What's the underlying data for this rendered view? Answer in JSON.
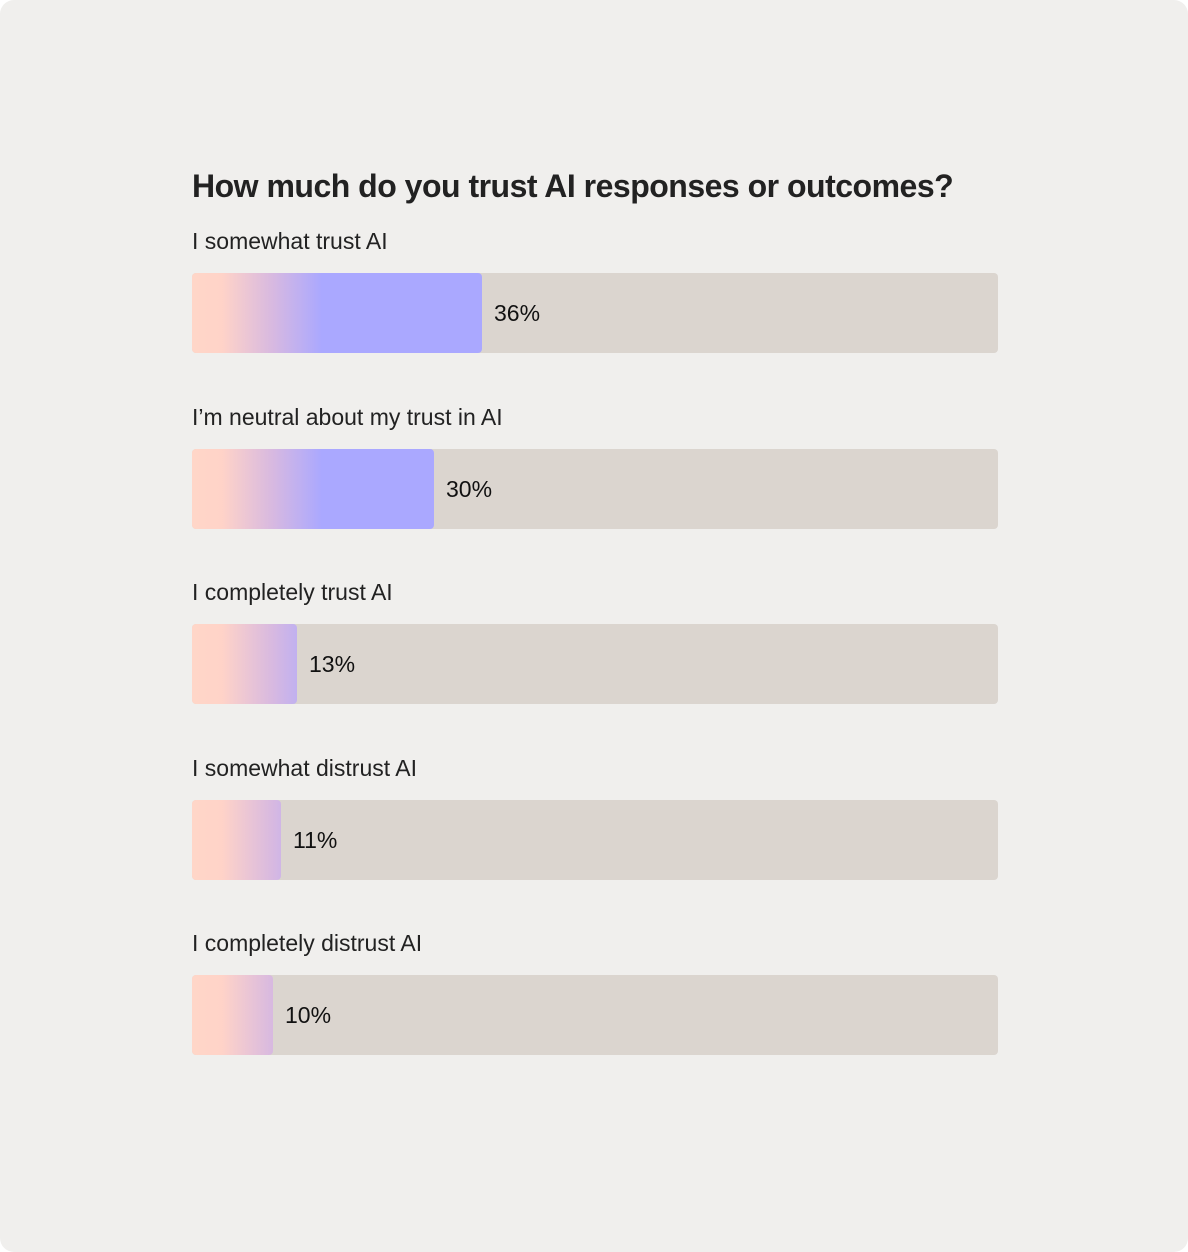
{
  "chart_data": {
    "type": "bar",
    "orientation": "horizontal",
    "title": "How much do you trust AI responses or outcomes?",
    "categories": [
      "I somewhat trust AI",
      "I’m neutral about my trust in AI",
      "I completely trust AI",
      "I somewhat distrust AI",
      "I completely distrust AI"
    ],
    "values": [
      36,
      30,
      13,
      11,
      10
    ],
    "value_labels": [
      "36%",
      "30%",
      "13%",
      "11%",
      "10%"
    ],
    "xlim": [
      0,
      100
    ],
    "unit": "%",
    "grid": false,
    "legend": "none",
    "colors": {
      "background": "#f0efed",
      "track": "#dbd5cf",
      "fill_start": "#ffd6c8",
      "fill_end": "#aaa8ff",
      "text": "#222222"
    }
  }
}
